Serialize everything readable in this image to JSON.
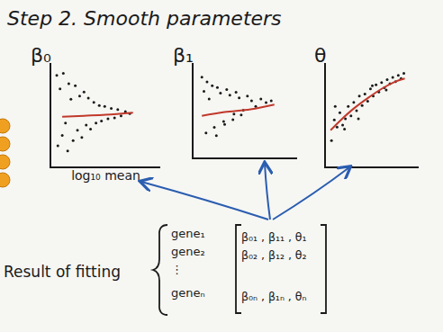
{
  "header": {
    "title": "Step 2. Smooth parameters"
  },
  "chart_data": [
    {
      "type": "scatter",
      "title": "β₀",
      "x_label": "log₁₀ mean",
      "xlim": [
        0,
        10
      ],
      "ylim": [
        0,
        10
      ],
      "tick_labels": false,
      "grid": false,
      "series": [
        {
          "type": "scatter",
          "color": "#1a1a1a",
          "marker": "dot",
          "x": [
            0.5,
            0.6,
            0.8,
            1.0,
            1.1,
            1.3,
            1.5,
            1.6,
            1.8,
            2.0,
            2.2,
            2.4,
            2.6,
            2.8,
            3.0,
            3.2,
            3.4,
            3.6,
            3.9,
            4.1,
            4.4,
            4.6,
            4.9,
            5.2,
            5.5,
            5.8,
            6.1,
            6.4,
            6.8,
            7.2
          ],
          "values": [
            8.8,
            2.0,
            7.5,
            3.0,
            9.0,
            4.2,
            1.5,
            8.0,
            6.5,
            2.5,
            7.8,
            3.5,
            6.8,
            2.8,
            7.2,
            4.0,
            6.6,
            3.6,
            6.2,
            4.2,
            5.9,
            4.4,
            5.8,
            4.6,
            5.6,
            4.7,
            5.5,
            4.9,
            5.3,
            5.1
          ]
        },
        {
          "type": "line",
          "color": "#c0392b",
          "line_style": "solid",
          "x": [
            1,
            3,
            5,
            7.5
          ],
          "values": [
            4.8,
            4.9,
            5.0,
            5.2
          ]
        }
      ]
    },
    {
      "type": "scatter",
      "title": "β₁",
      "xlim": [
        0,
        10
      ],
      "ylim": [
        0,
        10
      ],
      "tick_labels": false,
      "grid": false,
      "series": [
        {
          "type": "scatter",
          "color": "#1a1a1a",
          "marker": "dot",
          "x": [
            0.8,
            1.0,
            1.3,
            1.5,
            1.8,
            2.0,
            2.3,
            2.6,
            2.9,
            3.2,
            3.5,
            3.8,
            4.1,
            4.4,
            4.8,
            5.2,
            5.6,
            6.0,
            6.5,
            7.0,
            7.5,
            1.2,
            2.2,
            3.0,
            3.9,
            4.6
          ],
          "values": [
            8.5,
            7.0,
            8.0,
            6.2,
            7.6,
            3.2,
            7.4,
            6.8,
            3.8,
            7.2,
            6.6,
            4.0,
            6.9,
            6.3,
            5.0,
            6.5,
            6.0,
            5.4,
            6.2,
            5.8,
            6.0,
            2.6,
            2.3,
            3.5,
            4.6,
            4.5
          ]
        },
        {
          "type": "line",
          "color": "#c0392b",
          "line_style": "solid",
          "x": [
            0.8,
            3,
            5.5,
            7.8
          ],
          "values": [
            4.4,
            4.8,
            5.1,
            5.6
          ]
        }
      ]
    },
    {
      "type": "scatter",
      "title": "θ",
      "xlim": [
        0,
        10
      ],
      "ylim": [
        0,
        10
      ],
      "tick_labels": false,
      "grid": false,
      "series": [
        {
          "type": "scatter",
          "color": "#1a1a1a",
          "marker": "dot",
          "x": [
            0.6,
            0.9,
            1.2,
            1.5,
            1.8,
            2.1,
            2.4,
            2.7,
            3.0,
            3.3,
            3.6,
            3.9,
            4.2,
            4.5,
            4.8,
            5.1,
            5.4,
            5.7,
            6.0,
            6.3,
            6.6,
            6.9,
            7.2,
            7.5,
            7.8,
            8.1,
            8.4,
            1.0,
            2.0,
            3.5,
            5.0,
            6.5
          ],
          "values": [
            2.5,
            4.5,
            3.8,
            5.2,
            4.0,
            4.6,
            5.8,
            4.9,
            6.2,
            5.4,
            6.8,
            5.9,
            7.0,
            6.3,
            7.5,
            6.8,
            7.9,
            7.2,
            8.1,
            7.6,
            8.4,
            8.0,
            8.6,
            8.2,
            8.8,
            8.5,
            9.0,
            5.8,
            3.6,
            4.6,
            7.8,
            7.4
          ]
        },
        {
          "type": "line",
          "color": "#c0392b",
          "line_style": "solid",
          "x": [
            0.5,
            1.5,
            3,
            4.5,
            6,
            7.5,
            8.5
          ],
          "values": [
            3.5,
            4.4,
            5.6,
            6.6,
            7.5,
            8.2,
            8.5
          ]
        }
      ]
    }
  ],
  "result": {
    "label": "Result of fitting",
    "genes": [
      "gene₁",
      "gene₂",
      "⋮",
      "geneₙ"
    ],
    "matrix_rows": [
      "β₀₁ , β₁₁ , θ₁",
      "β₀₂ , β₁₂ , θ₂",
      "β₀ₙ , β₁ₙ , θₙ"
    ]
  }
}
